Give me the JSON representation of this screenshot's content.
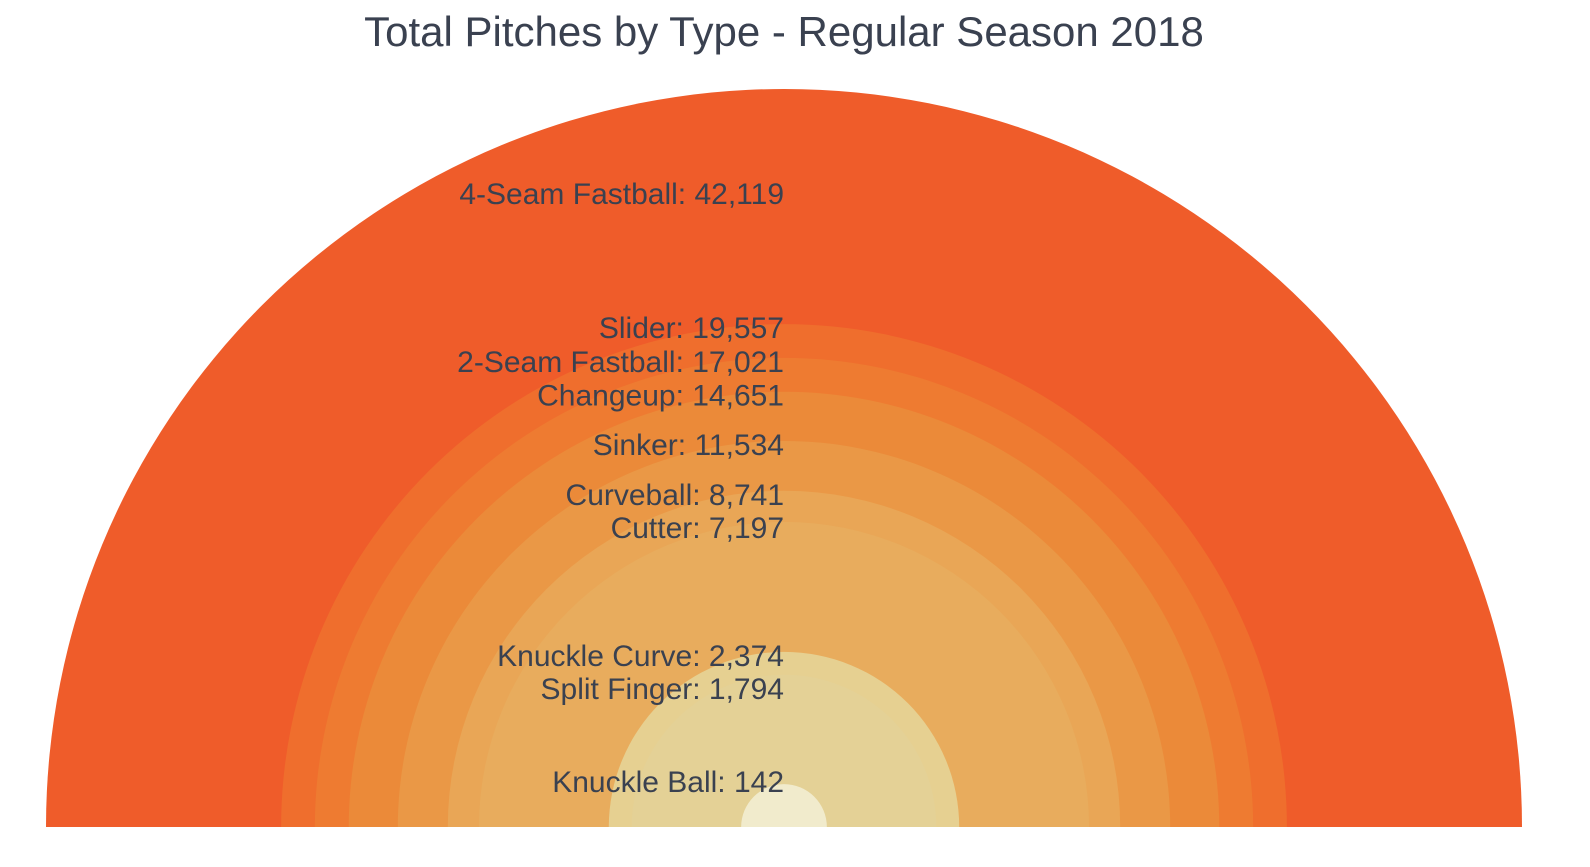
{
  "chart_data": {
    "type": "pie",
    "title": "Total Pitches by Type - Regular Season 2018",
    "categories": [
      "4-Seam Fastball",
      "Slider",
      "2-Seam Fastball",
      "Changeup",
      "Sinker",
      "Curveball",
      "Cutter",
      "Knuckle Curve",
      "Split Finger",
      "Knuckle Ball"
    ],
    "values": [
      42119,
      19557,
      17021,
      14651,
      11534,
      8741,
      7197,
      2374,
      1794,
      142
    ],
    "labels": [
      "4-Seam Fastball: 42,119",
      "Slider: 19,557",
      "2-Seam Fastball: 17,021",
      "Changeup: 14,651",
      "Sinker: 11,534",
      "Curveball: 8,741",
      "Cutter: 7,197",
      "Knuckle Curve: 2,374",
      "Split Finger: 1,794",
      "Knuckle Ball: 142"
    ],
    "colors": [
      "#ef5c2a",
      "#ef6e2d",
      "#ee7b31",
      "#eb8a39",
      "#ea9846",
      "#e9a656",
      "#e8ac5d",
      "#e6d091",
      "#e4d196",
      "#f1ebcc"
    ],
    "shape": "concentric semicircles, area proportional to value",
    "legend": "none"
  }
}
